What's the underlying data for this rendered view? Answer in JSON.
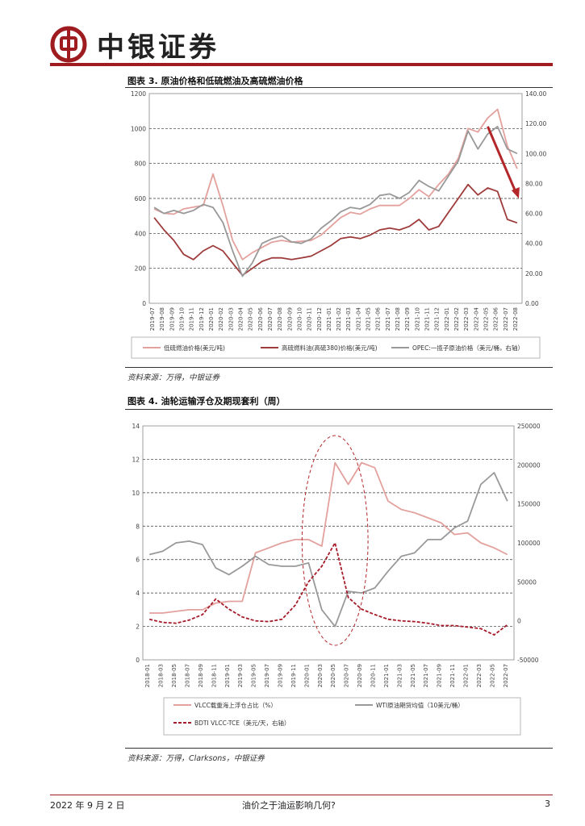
{
  "header": {
    "brand": "中银证券"
  },
  "figure3": {
    "title": "图表 3. 原油价格和低硫燃油及高硫燃油价格",
    "source": "资料来源：万得，中银证券",
    "chart_data": {
      "type": "line",
      "title": "原油价格和低硫燃油及高硫燃油价格",
      "categories": [
        "2019-07",
        "2019-08",
        "2019-09",
        "2019-10",
        "2019-11",
        "2019-12",
        "2020-01",
        "2020-02",
        "2020-03",
        "2020-04",
        "2020-05",
        "2020-06",
        "2020-07",
        "2020-08",
        "2020-09",
        "2020-10",
        "2020-11",
        "2020-12",
        "2021-01",
        "2021-02",
        "2021-03",
        "2021-04",
        "2021-05",
        "2021-06",
        "2021-07",
        "2021-08",
        "2021-09",
        "2021-10",
        "2021-11",
        "2021-12",
        "2022-01",
        "2022-02",
        "2022-03",
        "2022-04",
        "2022-05",
        "2022-06",
        "2022-07",
        "2022-08"
      ],
      "y_left": {
        "ticks": [
          "0",
          "200",
          "400",
          "600",
          "800",
          "1000",
          "1200"
        ],
        "range": [
          0,
          1200
        ]
      },
      "y_right": {
        "ticks": [
          "0.00",
          "20.00",
          "40.00",
          "60.00",
          "80.00",
          "100.00",
          "120.00",
          "140.00"
        ],
        "range": [
          0,
          140
        ]
      },
      "series": [
        {
          "name": "低硫燃油价格(美元/吨)",
          "axis": "left",
          "color": "#e3a19d",
          "values": [
            540,
            515,
            510,
            540,
            550,
            560,
            740,
            560,
            360,
            250,
            290,
            320,
            350,
            360,
            350,
            355,
            360,
            390,
            440,
            490,
            520,
            510,
            540,
            560,
            560,
            560,
            600,
            650,
            610,
            680,
            740,
            830,
            1000,
            980,
            1060,
            1110,
            900,
            770
          ]
        },
        {
          "name": "高硫燃料油(高硫380)价格(美元/吨)",
          "axis": "left",
          "color": "#9e3b3b",
          "values": [
            490,
            420,
            360,
            280,
            250,
            300,
            330,
            300,
            230,
            160,
            200,
            240,
            260,
            260,
            250,
            260,
            270,
            300,
            330,
            370,
            380,
            370,
            390,
            420,
            430,
            420,
            440,
            480,
            420,
            440,
            520,
            600,
            680,
            620,
            660,
            640,
            480,
            460
          ]
        },
        {
          "name": "OPEC:一揽子原油价格（美元/桶，右轴）",
          "axis": "right",
          "color": "#999999",
          "values": [
            64,
            60,
            62,
            60,
            62,
            66,
            64,
            54,
            35,
            18,
            27,
            40,
            43,
            45,
            41,
            40,
            43,
            50,
            55,
            61,
            64,
            63,
            66,
            72,
            73,
            70,
            74,
            82,
            78,
            75,
            85,
            95,
            115,
            103,
            113,
            118,
            103,
            100
          ]
        }
      ],
      "annotation": "downward arrow 2022-06 to 2022-08 (高硫燃油价格回落)"
    }
  },
  "figure4": {
    "title": "图表 4. 油轮运输浮仓及期现套利（周）",
    "source": "资料来源：万得，Clarksons，中银证券",
    "chart_data": {
      "type": "line",
      "title": "油轮运输浮仓及期现套利（周）",
      "categories": [
        "2018-01",
        "2018-03",
        "2018-05",
        "2018-07",
        "2018-09",
        "2018-11",
        "2019-01",
        "2019-03",
        "2019-05",
        "2019-07",
        "2019-09",
        "2019-11",
        "2020-01",
        "2020-03",
        "2020-05",
        "2020-07",
        "2020-09",
        "2020-11",
        "2021-01",
        "2021-03",
        "2021-05",
        "2021-07",
        "2021-09",
        "2021-11",
        "2022-01",
        "2022-03",
        "2022-05",
        "2022-07"
      ],
      "y_left": {
        "ticks": [
          "0",
          "2",
          "4",
          "6",
          "8",
          "10",
          "12",
          "14"
        ],
        "range": [
          0,
          14
        ]
      },
      "y_right": {
        "ticks": [
          "-50000",
          "0",
          "50000",
          "100000",
          "150000",
          "200000",
          "250000"
        ],
        "range": [
          -50000,
          250000
        ]
      },
      "series": [
        {
          "name": "VLCC载重海上浮仓占比（%）",
          "axis": "left",
          "color": "#e3a19d",
          "values": [
            2.8,
            2.8,
            2.9,
            3.0,
            3.0,
            3.4,
            3.5,
            3.5,
            6.4,
            6.7,
            7.0,
            7.2,
            7.2,
            6.8,
            11.8,
            10.5,
            11.8,
            11.5,
            9.5,
            9.0,
            8.8,
            8.5,
            8.2,
            7.5,
            7.6,
            7.0,
            6.7,
            6.3
          ]
        },
        {
          "name": "WTI原油期货均值（10美元/桶）",
          "axis": "left",
          "color": "#999999",
          "values": [
            6.3,
            6.5,
            7.0,
            7.1,
            6.9,
            5.5,
            5.1,
            5.6,
            6.2,
            5.7,
            5.6,
            5.6,
            5.8,
            3.0,
            2.0,
            4.1,
            4.0,
            4.3,
            5.3,
            6.2,
            6.4,
            7.2,
            7.2,
            7.9,
            8.3,
            10.5,
            11.2,
            9.5
          ]
        },
        {
          "name": "BDTI VLCC-TCE（美元/天，右轴）",
          "axis": "right",
          "color": "#a61c2a",
          "dash": true,
          "values": [
            2000,
            -2000,
            -3000,
            1000,
            8000,
            28000,
            15000,
            5000,
            0,
            -1000,
            2000,
            20000,
            50000,
            70000,
            100000,
            30000,
            15000,
            8000,
            2000,
            0,
            -1000,
            -3000,
            -6000,
            -6000,
            -8000,
            -10000,
            -18000,
            -5000
          ]
        }
      ],
      "annotation": "dashed ellipse highlighting 2020 floating storage spike"
    }
  },
  "footer": {
    "date": "2022 年 9 月 2 日",
    "title": "油价之于油运影响几何?",
    "page": "3"
  }
}
